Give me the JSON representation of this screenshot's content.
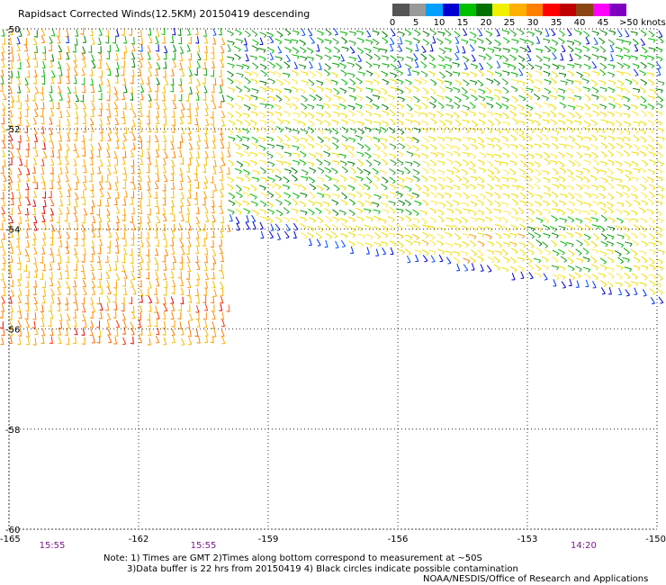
{
  "title": "Rapidsact Corrected Winds(12.5KM) 20150419 descending",
  "legend": {
    "labels": [
      "0",
      "5",
      "10",
      "15",
      "20",
      "25",
      "30",
      "35",
      "40",
      "45",
      ">50 knots"
    ],
    "colors": [
      "#555555",
      "#999999",
      "#00a0ff",
      "#0000d0",
      "#00c000",
      "#007000",
      "#f0f000",
      "#ffb000",
      "#ff8000",
      "#ff0000",
      "#c00000",
      "#8b4513",
      "#ff00ff",
      "#8000c0"
    ]
  },
  "axes": {
    "lon_labels": [
      "-165",
      "-162",
      "-159",
      "-156",
      "-153",
      "-150"
    ],
    "lat_labels": [
      "-50",
      "-52",
      "-54",
      "-56",
      "-58",
      "-60"
    ],
    "lon_range": [
      -165,
      -150
    ],
    "lat_range": [
      -50,
      -60
    ]
  },
  "time_labels": [
    {
      "text": "15:55",
      "lon": -164.0
    },
    {
      "text": "15:55",
      "lon": -160.5
    },
    {
      "text": "14:20",
      "lon": -151.7
    }
  ],
  "notes": {
    "line1": "Note: 1) Times are GMT 2)Times along bottom correspond to measurement at ~50S",
    "line2": "3)Data buffer is 22 hrs from 20150419 4) Black circles indicate possible contamination"
  },
  "credit": "NOAA/NESDIS/Office of Research and Applications"
}
